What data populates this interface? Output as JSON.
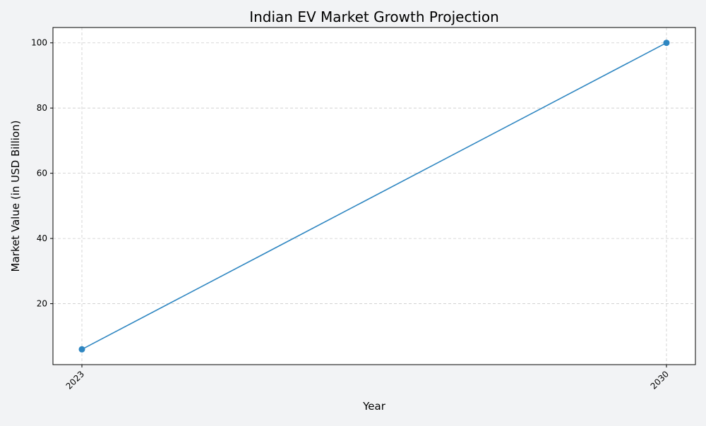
{
  "chart_data": {
    "type": "line",
    "title": "Indian EV Market Growth Projection",
    "xlabel": "Year",
    "ylabel": "Market Value (in USD Billion)",
    "categories": [
      "2023",
      "2030"
    ],
    "series": [
      {
        "values": [
          6,
          100
        ],
        "color": "#2e86c1"
      }
    ],
    "yticks": [
      20,
      40,
      60,
      80,
      100
    ],
    "ylim": [
      1.3,
      104.7
    ],
    "grid": true,
    "grid_style": "dashed",
    "legend": "none",
    "background": "#f2f3f5",
    "plot_background": "#ffffff",
    "marker": "circle"
  }
}
